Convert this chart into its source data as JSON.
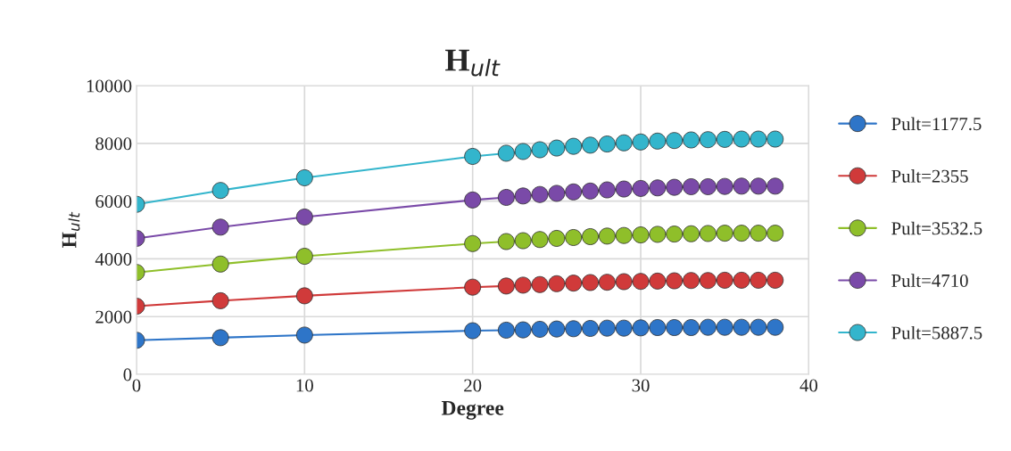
{
  "chart_data": {
    "type": "line",
    "title": "H$_{ult}$",
    "xlabel": "Degree",
    "ylabel": "H$_{ult}$",
    "x": [
      0,
      5,
      10,
      20,
      22,
      23,
      24,
      25,
      26,
      27,
      28,
      29,
      30,
      31,
      32,
      33,
      34,
      35,
      36,
      37,
      38
    ],
    "xlim": [
      0,
      40
    ],
    "xticks": [
      0,
      10,
      20,
      30,
      40
    ],
    "ylim": [
      0,
      10000
    ],
    "yticks": [
      0,
      2000,
      4000,
      6000,
      8000,
      10000
    ],
    "grid": true,
    "legend": "right",
    "marker": "circle",
    "line_style": "solid",
    "series": [
      {
        "name": "Pult=1177.5",
        "color": "#2e75c8",
        "values": [
          1180,
          1270,
          1360,
          1510,
          1530,
          1540,
          1560,
          1570,
          1580,
          1590,
          1600,
          1600,
          1610,
          1620,
          1620,
          1620,
          1630,
          1630,
          1630,
          1630,
          1630
        ]
      },
      {
        "name": "Pult=2355",
        "color": "#d03a3a",
        "values": [
          2360,
          2550,
          2720,
          3020,
          3060,
          3090,
          3110,
          3140,
          3160,
          3180,
          3190,
          3210,
          3220,
          3230,
          3240,
          3250,
          3250,
          3260,
          3260,
          3260,
          3260
        ]
      },
      {
        "name": "Pult=3532.5",
        "color": "#8fbf2a",
        "values": [
          3530,
          3820,
          4090,
          4530,
          4600,
          4630,
          4670,
          4710,
          4740,
          4770,
          4790,
          4810,
          4830,
          4850,
          4860,
          4870,
          4880,
          4890,
          4890,
          4890,
          4890
        ]
      },
      {
        "name": "Pult=4710",
        "color": "#7a4aa8",
        "values": [
          4710,
          5100,
          5450,
          6040,
          6130,
          6180,
          6230,
          6270,
          6320,
          6350,
          6390,
          6420,
          6440,
          6460,
          6480,
          6500,
          6500,
          6510,
          6520,
          6520,
          6520
        ]
      },
      {
        "name": "Pult=5887.5",
        "color": "#33b5cc",
        "values": [
          5890,
          6370,
          6810,
          7550,
          7660,
          7720,
          7780,
          7840,
          7900,
          7940,
          7980,
          8020,
          8050,
          8080,
          8100,
          8120,
          8130,
          8140,
          8150,
          8150,
          8150
        ]
      }
    ]
  }
}
